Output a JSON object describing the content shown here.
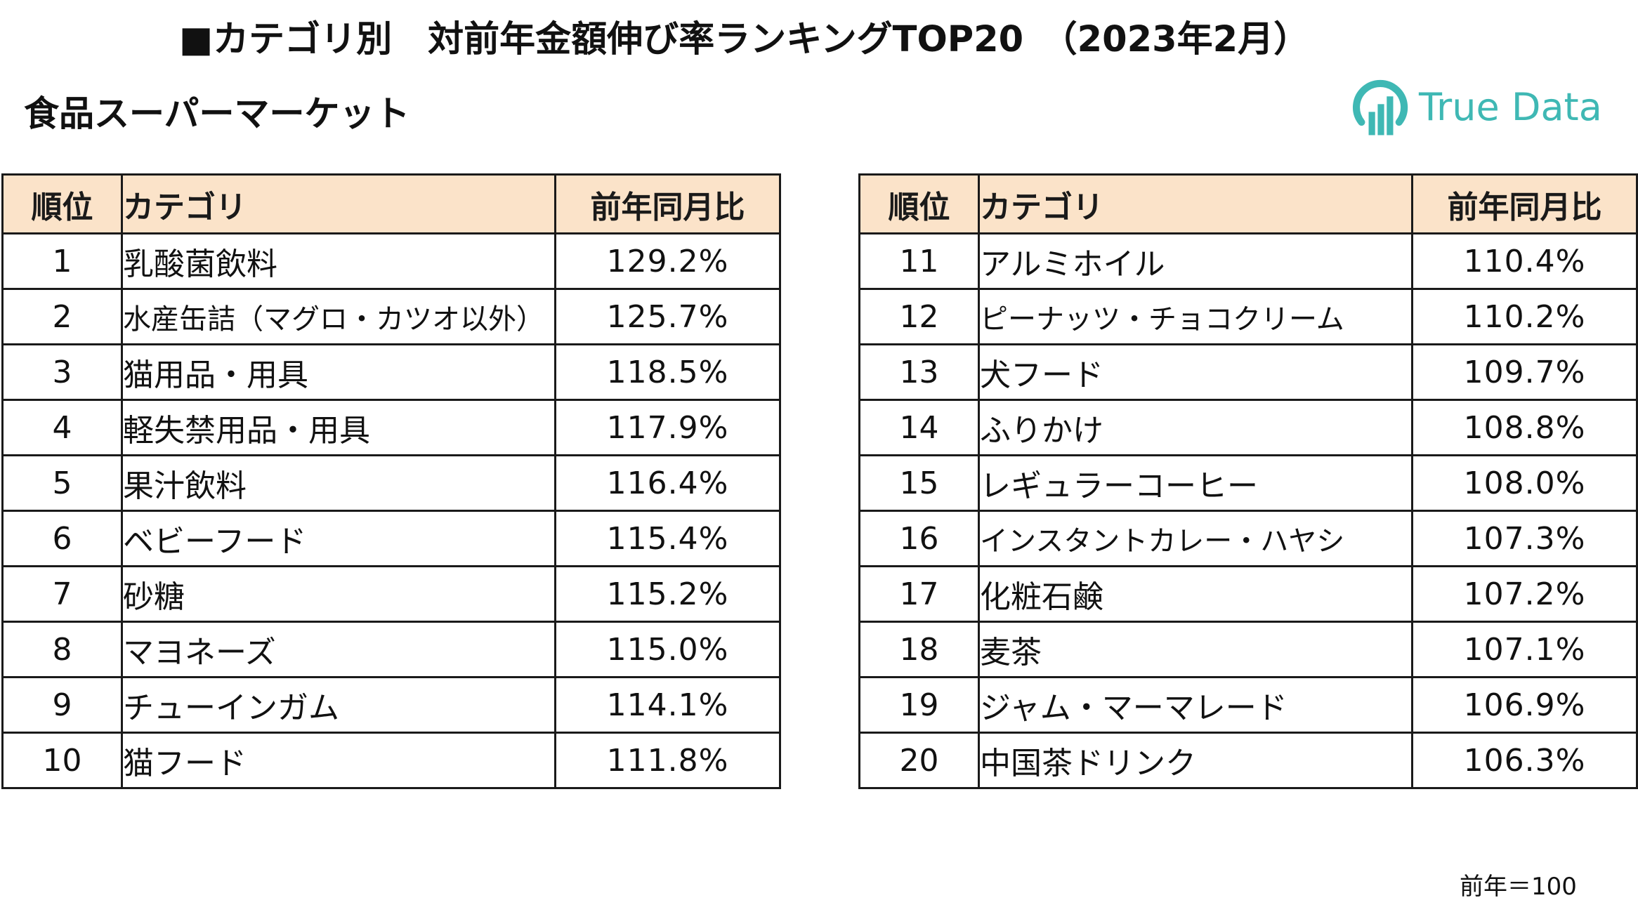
{
  "title": "■カテゴリ別　対前年金額伸び率ランキングTOP20　（2023年2月）",
  "subtitle": "食品スーパーマーケット",
  "logo": {
    "text": "True Data",
    "color": "#3fb8b4",
    "icon": "bar-chart-circle-icon"
  },
  "table": {
    "headers": {
      "rank": "順位",
      "category": "カテゴリ",
      "value": "前年同月比"
    },
    "header_color": "#fbe3c9",
    "rows": [
      {
        "rank": "1",
        "category": "乳酸菌飲料",
        "value": "129.2%"
      },
      {
        "rank": "2",
        "category": "水産缶詰（マグロ・カツオ以外）",
        "value": "125.7%"
      },
      {
        "rank": "3",
        "category": "猫用品・用具",
        "value": "118.5%"
      },
      {
        "rank": "4",
        "category": "軽失禁用品・用具",
        "value": "117.9%"
      },
      {
        "rank": "5",
        "category": "果汁飲料",
        "value": "116.4%"
      },
      {
        "rank": "6",
        "category": "ベビーフード",
        "value": "115.4%"
      },
      {
        "rank": "7",
        "category": "砂糖",
        "value": "115.2%"
      },
      {
        "rank": "8",
        "category": "マヨネーズ",
        "value": "115.0%"
      },
      {
        "rank": "9",
        "category": "チューインガム",
        "value": "114.1%"
      },
      {
        "rank": "10",
        "category": "猫フード",
        "value": "111.8%"
      },
      {
        "rank": "11",
        "category": "アルミホイル",
        "value": "110.4%"
      },
      {
        "rank": "12",
        "category": "ピーナッツ・チョコクリーム",
        "value": "110.2%"
      },
      {
        "rank": "13",
        "category": "犬フード",
        "value": "109.7%"
      },
      {
        "rank": "14",
        "category": "ふりかけ",
        "value": "108.8%"
      },
      {
        "rank": "15",
        "category": "レギュラーコーヒー",
        "value": "108.0%"
      },
      {
        "rank": "16",
        "category": "インスタントカレー・ハヤシ",
        "value": "107.3%"
      },
      {
        "rank": "17",
        "category": "化粧石鹸",
        "value": "107.2%"
      },
      {
        "rank": "18",
        "category": "麦茶",
        "value": "107.1%"
      },
      {
        "rank": "19",
        "category": "ジャム・マーマレード",
        "value": "106.9%"
      },
      {
        "rank": "20",
        "category": "中国茶ドリンク",
        "value": "106.3%"
      }
    ]
  },
  "note": "前年＝100"
}
